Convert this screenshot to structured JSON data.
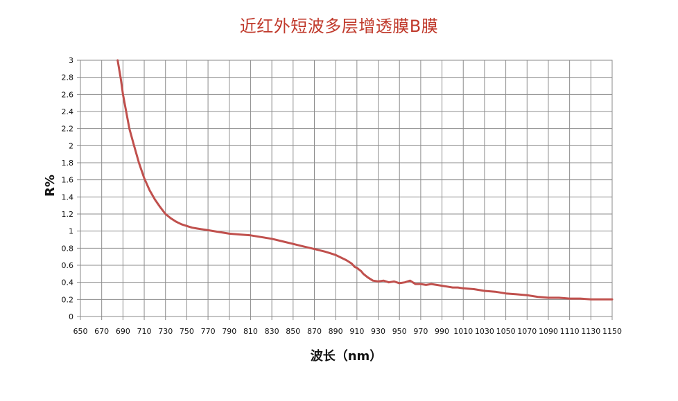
{
  "chart_data": {
    "type": "line",
    "title": "近红外短波多层增透膜B膜",
    "xlabel": "波长（nm）",
    "ylabel": "R%",
    "xlim": [
      650,
      1150
    ],
    "ylim": [
      0,
      3
    ],
    "x_ticks": [
      650,
      670,
      690,
      710,
      730,
      750,
      770,
      790,
      810,
      830,
      850,
      870,
      890,
      910,
      930,
      950,
      970,
      990,
      1010,
      1030,
      1050,
      1070,
      1090,
      1110,
      1130,
      1150
    ],
    "y_ticks": [
      0,
      0.2,
      0.4,
      0.6,
      0.8,
      1,
      1.2,
      1.4,
      1.6,
      1.8,
      2,
      2.2,
      2.4,
      2.6,
      2.8,
      3
    ],
    "grid": true,
    "legend": "none",
    "series": [
      {
        "color": "#c0504d",
        "x": [
          685,
          688,
          690,
          693,
          696,
          700,
          705,
          710,
          715,
          720,
          725,
          730,
          735,
          740,
          745,
          750,
          755,
          760,
          765,
          770,
          780,
          790,
          800,
          810,
          820,
          830,
          840,
          850,
          860,
          870,
          880,
          885,
          890,
          895,
          900,
          905,
          908,
          910,
          912,
          914,
          916,
          918,
          920,
          925,
          930,
          935,
          940,
          945,
          950,
          955,
          960,
          965,
          970,
          975,
          980,
          985,
          990,
          995,
          1000,
          1005,
          1010,
          1020,
          1030,
          1040,
          1050,
          1060,
          1070,
          1080,
          1090,
          1100,
          1110,
          1120,
          1130,
          1140,
          1150
        ],
        "y": [
          3.0,
          2.78,
          2.6,
          2.4,
          2.2,
          2.02,
          1.8,
          1.62,
          1.48,
          1.37,
          1.28,
          1.2,
          1.15,
          1.11,
          1.08,
          1.06,
          1.04,
          1.03,
          1.02,
          1.01,
          0.99,
          0.97,
          0.96,
          0.95,
          0.93,
          0.91,
          0.88,
          0.85,
          0.82,
          0.79,
          0.76,
          0.74,
          0.72,
          0.69,
          0.66,
          0.62,
          0.58,
          0.57,
          0.55,
          0.53,
          0.5,
          0.48,
          0.46,
          0.42,
          0.41,
          0.42,
          0.4,
          0.41,
          0.39,
          0.4,
          0.42,
          0.38,
          0.38,
          0.37,
          0.38,
          0.37,
          0.36,
          0.35,
          0.34,
          0.34,
          0.33,
          0.32,
          0.3,
          0.29,
          0.27,
          0.26,
          0.25,
          0.23,
          0.22,
          0.22,
          0.21,
          0.21,
          0.2,
          0.2,
          0.2
        ]
      }
    ]
  }
}
